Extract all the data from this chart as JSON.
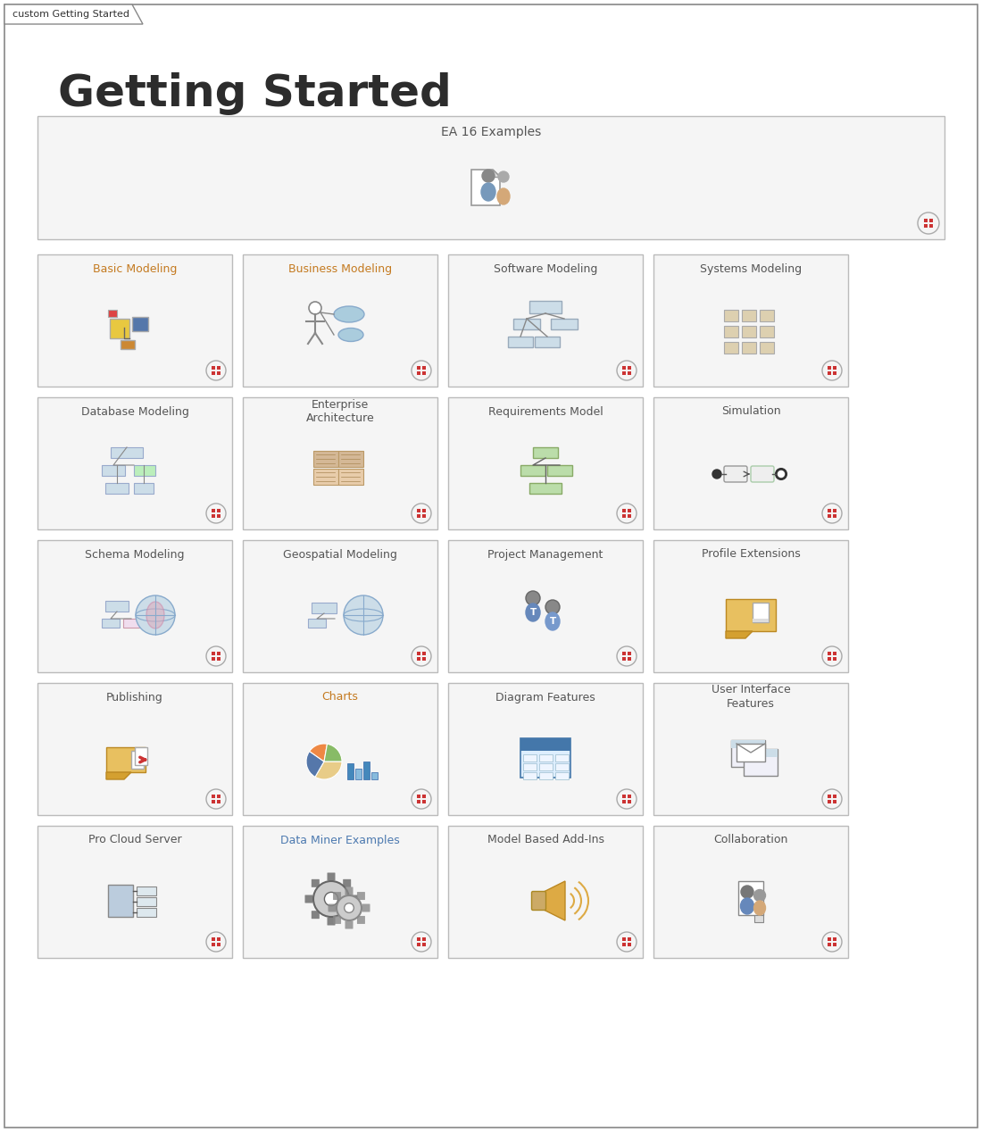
{
  "title": "Getting Started",
  "tab_label": "custom Getting Started",
  "background_color": "#ffffff",
  "title_color": "#2c2c2c",
  "ea16_title": "EA 16 Examples",
  "ea16_title_color": "#555555",
  "cell_bg": "#f5f5f5",
  "cell_border": "#bbbbbb",
  "cells": [
    {
      "label": "Basic Modeling",
      "row": 0,
      "col": 0,
      "title_color": "#c47a20"
    },
    {
      "label": "Business Modeling",
      "row": 0,
      "col": 1,
      "title_color": "#c47a20"
    },
    {
      "label": "Software Modeling",
      "row": 0,
      "col": 2,
      "title_color": "#555555"
    },
    {
      "label": "Systems Modeling",
      "row": 0,
      "col": 3,
      "title_color": "#555555"
    },
    {
      "label": "Database Modeling",
      "row": 1,
      "col": 0,
      "title_color": "#555555"
    },
    {
      "label": "Enterprise\nArchitecture",
      "row": 1,
      "col": 1,
      "title_color": "#555555"
    },
    {
      "label": "Requirements Model",
      "row": 1,
      "col": 2,
      "title_color": "#555555"
    },
    {
      "label": "Simulation",
      "row": 1,
      "col": 3,
      "title_color": "#555555"
    },
    {
      "label": "Schema Modeling",
      "row": 2,
      "col": 0,
      "title_color": "#555555"
    },
    {
      "label": "Geospatial Modeling",
      "row": 2,
      "col": 1,
      "title_color": "#555555"
    },
    {
      "label": "Project Management",
      "row": 2,
      "col": 2,
      "title_color": "#555555"
    },
    {
      "label": "Profile Extensions",
      "row": 2,
      "col": 3,
      "title_color": "#555555"
    },
    {
      "label": "Publishing",
      "row": 3,
      "col": 0,
      "title_color": "#555555"
    },
    {
      "label": "Charts",
      "row": 3,
      "col": 1,
      "title_color": "#c47a20"
    },
    {
      "label": "Diagram Features",
      "row": 3,
      "col": 2,
      "title_color": "#555555"
    },
    {
      "label": "User Interface\nFeatures",
      "row": 3,
      "col": 3,
      "title_color": "#555555"
    },
    {
      "label": "Pro Cloud Server",
      "row": 4,
      "col": 0,
      "title_color": "#555555"
    },
    {
      "label": "Data Miner Examples",
      "row": 4,
      "col": 1,
      "title_color": "#4d7ab0"
    },
    {
      "label": "Model Based Add-Ins",
      "row": 4,
      "col": 2,
      "title_color": "#555555"
    },
    {
      "label": "Collaboration",
      "row": 4,
      "col": 3,
      "title_color": "#555555"
    }
  ]
}
